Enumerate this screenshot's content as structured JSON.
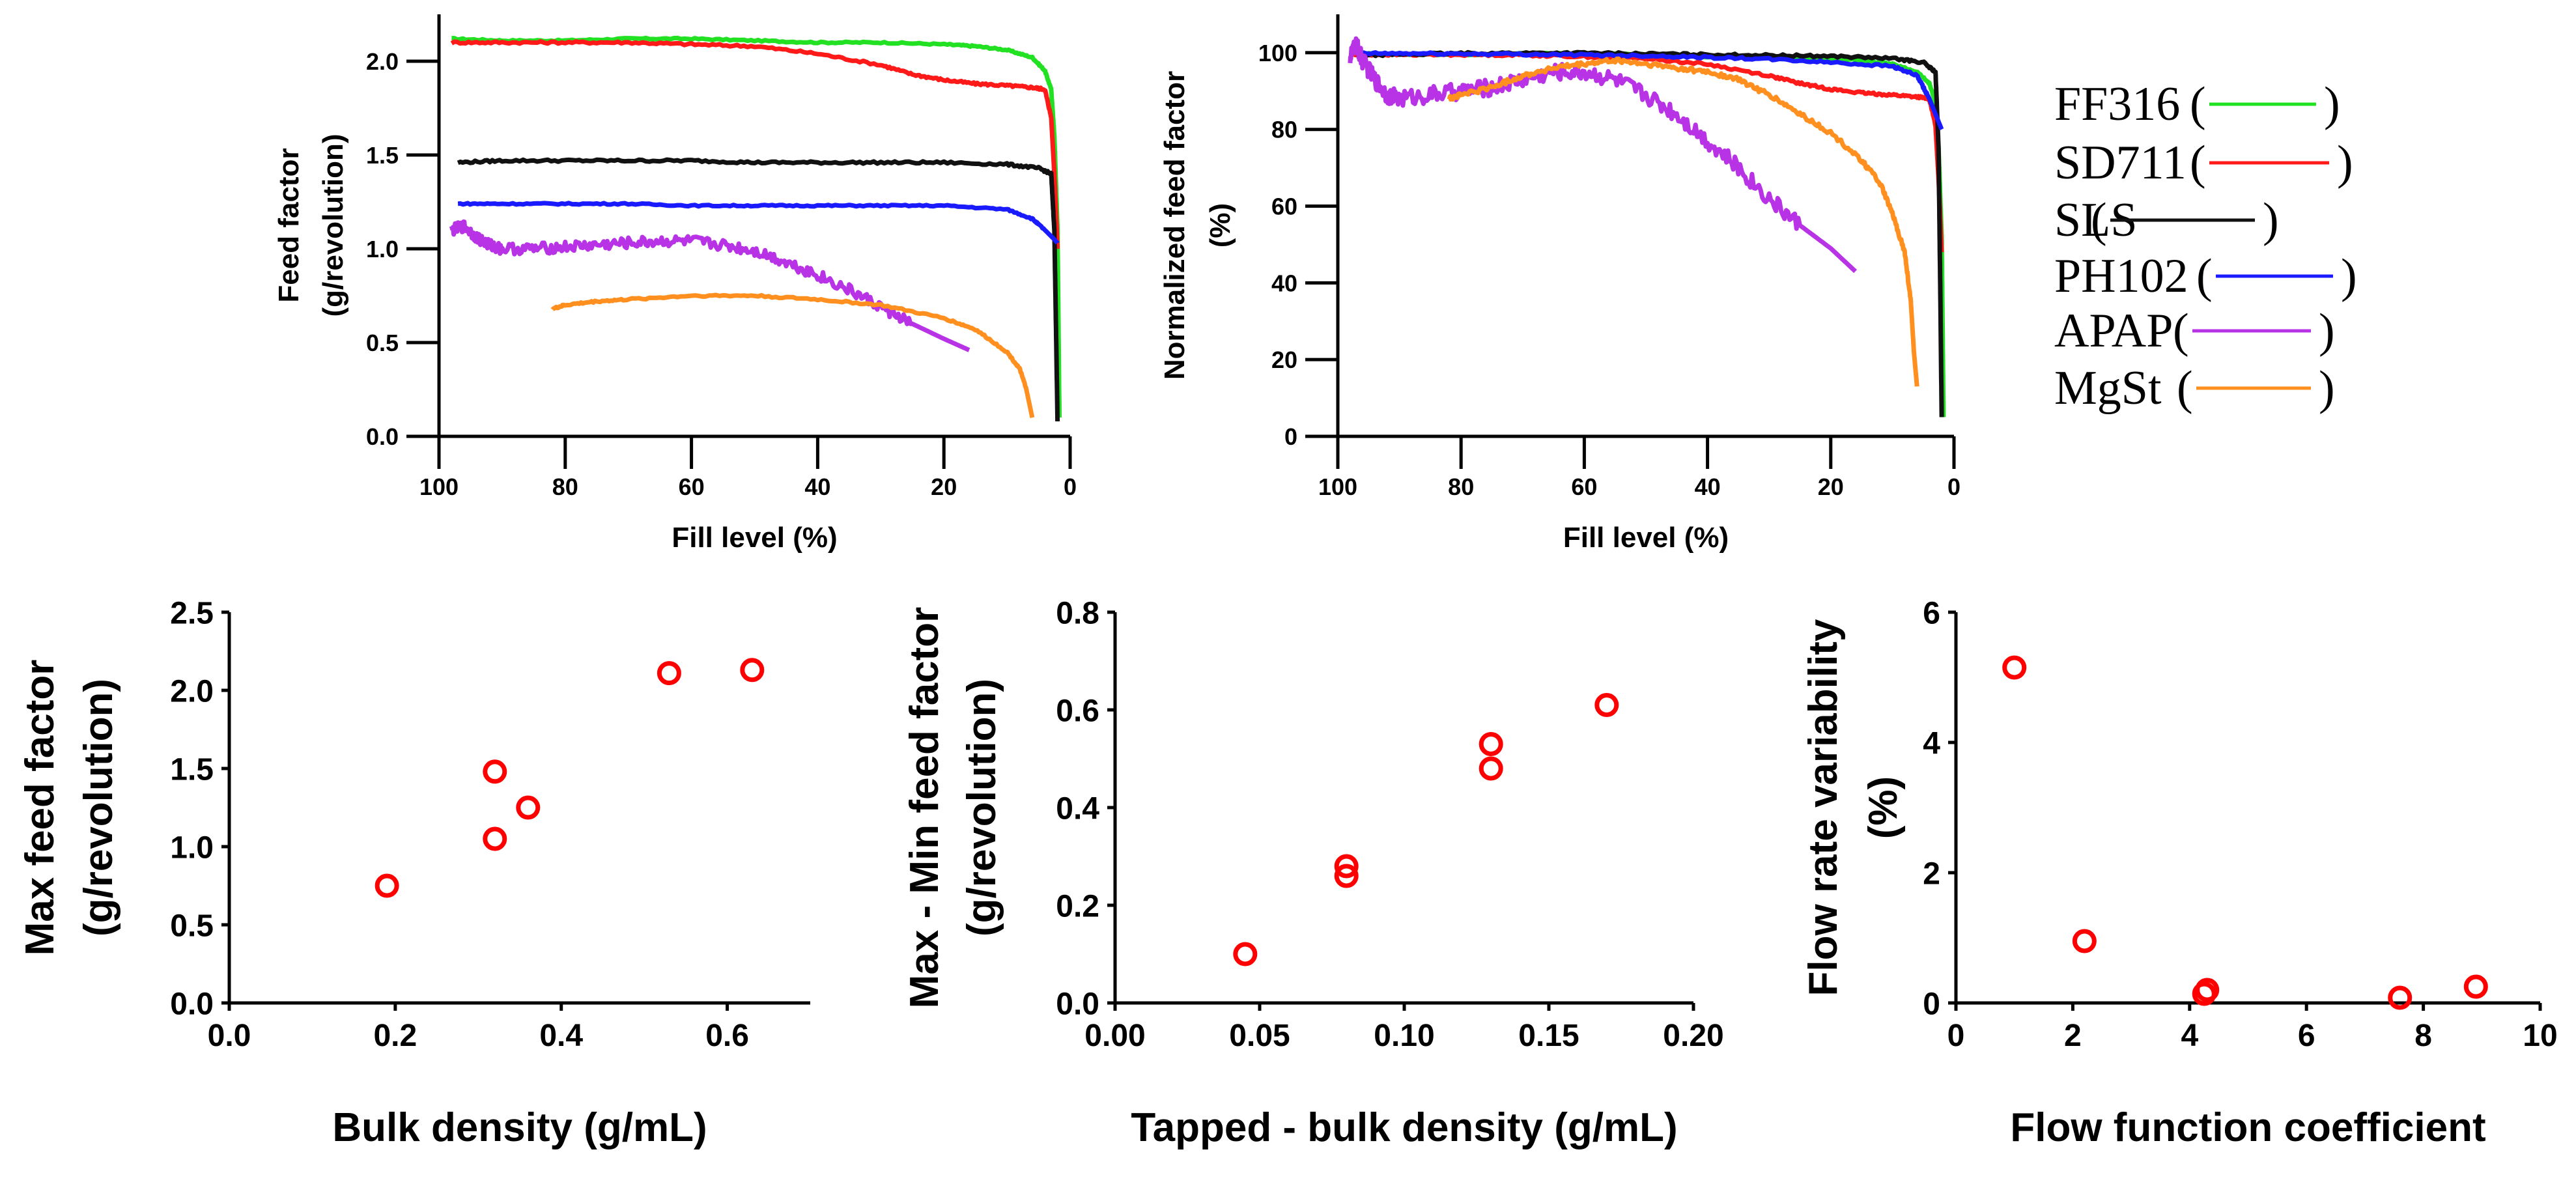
{
  "chart_data": [
    {
      "id": "feed-factor",
      "type": "line",
      "xlabel": "Fill level (%)",
      "ylabel_lines": [
        "Feed factor",
        "(g/revolution)"
      ],
      "xlim": [
        100,
        0
      ],
      "ylim": [
        0,
        2.25
      ],
      "xticks": [
        100,
        80,
        60,
        40,
        20,
        0
      ],
      "yticks": [
        0.0,
        0.5,
        1.0,
        1.5,
        2.0
      ],
      "ytick_decimals": 1,
      "series": [
        {
          "name": "FF316",
          "color": "#22e022",
          "noise": 0.004,
          "x": [
            98,
            90,
            80,
            70,
            60,
            50,
            40,
            30,
            20,
            15,
            10,
            6,
            4,
            3,
            2.5,
            2,
            1.7
          ],
          "y": [
            2.12,
            2.11,
            2.11,
            2.12,
            2.12,
            2.11,
            2.1,
            2.1,
            2.09,
            2.08,
            2.06,
            2.02,
            1.95,
            1.85,
            1.6,
            1.1,
            0.1
          ]
        },
        {
          "name": "SD711",
          "color": "#ff1a1a",
          "noise": 0.006,
          "x": [
            98,
            90,
            80,
            70,
            60,
            50,
            40,
            30,
            25,
            20,
            15,
            10,
            6,
            4,
            3,
            2.5,
            2
          ],
          "y": [
            2.1,
            2.1,
            2.1,
            2.1,
            2.09,
            2.08,
            2.04,
            1.98,
            1.93,
            1.9,
            1.88,
            1.87,
            1.86,
            1.85,
            1.7,
            1.4,
            1.0
          ]
        },
        {
          "name": "SLS",
          "color": "#111111",
          "noise": 0.006,
          "x": [
            97,
            90,
            80,
            70,
            60,
            50,
            40,
            30,
            20,
            10,
            5,
            3,
            2.5,
            2.2,
            2
          ],
          "y": [
            1.46,
            1.47,
            1.47,
            1.47,
            1.47,
            1.46,
            1.46,
            1.46,
            1.46,
            1.45,
            1.43,
            1.4,
            1.1,
            0.5,
            0.08
          ]
        },
        {
          "name": "PH102",
          "color": "#1a1aff",
          "noise": 0.004,
          "x": [
            97,
            90,
            80,
            70,
            60,
            50,
            40,
            30,
            20,
            10,
            6,
            4,
            2.5,
            2
          ],
          "y": [
            1.24,
            1.24,
            1.24,
            1.24,
            1.23,
            1.23,
            1.23,
            1.23,
            1.23,
            1.21,
            1.16,
            1.1,
            1.05,
            1.03
          ]
        },
        {
          "name": "APAP",
          "color": "#b833e6",
          "noise": 0.03,
          "x": [
            98,
            96,
            94,
            92,
            90,
            85,
            80,
            75,
            70,
            65,
            60,
            55,
            50,
            45,
            40,
            35,
            30,
            25,
            20,
            16
          ],
          "y": [
            1.1,
            1.12,
            1.06,
            1.02,
            1.0,
            1.0,
            1.01,
            1.02,
            1.03,
            1.04,
            1.04,
            1.02,
            0.99,
            0.93,
            0.86,
            0.78,
            0.69,
            0.6,
            0.52,
            0.46
          ]
        },
        {
          "name": "MgSt",
          "color": "#ff9020",
          "noise": 0.005,
          "x": [
            82,
            80,
            75,
            70,
            60,
            50,
            40,
            30,
            20,
            15,
            10,
            8,
            7,
            6.5,
            6
          ],
          "y": [
            0.68,
            0.7,
            0.72,
            0.73,
            0.75,
            0.75,
            0.73,
            0.7,
            0.63,
            0.57,
            0.45,
            0.36,
            0.26,
            0.18,
            0.1
          ]
        }
      ]
    },
    {
      "id": "normalized-feed-factor",
      "type": "line",
      "xlabel": "Fill level (%)",
      "ylabel_lines": [
        "Normalized feed factor",
        "(%)"
      ],
      "xlim": [
        100,
        0
      ],
      "ylim": [
        0,
        110
      ],
      "xticks": [
        100,
        80,
        60,
        40,
        20,
        0
      ],
      "yticks": [
        0,
        20,
        40,
        60,
        80,
        100
      ],
      "ytick_decimals": 0,
      "series": [
        {
          "name": "FF316",
          "color": "#22e022",
          "noise": 0.2,
          "x": [
            98,
            90,
            80,
            70,
            60,
            50,
            40,
            30,
            20,
            15,
            10,
            6,
            4,
            3,
            2.5,
            2,
            1.7
          ],
          "y": [
            100,
            99.6,
            99.5,
            99.7,
            99.8,
            99.5,
            99,
            98.8,
            98.5,
            98,
            97,
            95,
            92,
            87,
            75,
            52,
            5
          ]
        },
        {
          "name": "SD711",
          "color": "#ff1a1a",
          "noise": 0.3,
          "x": [
            98,
            90,
            80,
            70,
            60,
            50,
            40,
            30,
            25,
            20,
            15,
            10,
            6,
            4,
            3,
            2.5,
            2
          ],
          "y": [
            99.5,
            99.5,
            99.5,
            99.4,
            99,
            98.5,
            97,
            94,
            92,
            90.5,
            89.5,
            89,
            88.5,
            88,
            81,
            67,
            48
          ]
        },
        {
          "name": "SLS",
          "color": "#111111",
          "noise": 0.3,
          "x": [
            97,
            90,
            80,
            70,
            60,
            50,
            40,
            30,
            20,
            10,
            5,
            3,
            2.5,
            2.2,
            2
          ],
          "y": [
            99.3,
            99.6,
            99.8,
            99.9,
            99.9,
            99.7,
            99.5,
            99.3,
            99.1,
            98.5,
            97.5,
            95,
            75,
            35,
            5
          ]
        },
        {
          "name": "PH102",
          "color": "#1a1aff",
          "noise": 0.3,
          "x": [
            97,
            90,
            80,
            70,
            60,
            50,
            40,
            30,
            20,
            10,
            6,
            4,
            2.5,
            2
          ],
          "y": [
            99.8,
            99.8,
            99.7,
            99.6,
            99.4,
            99.2,
            98.8,
            98.3,
            97.5,
            96.5,
            94,
            88,
            82,
            80
          ]
        },
        {
          "name": "APAP",
          "color": "#b833e6",
          "noise": 2.2,
          "x": [
            98,
            97,
            96,
            94,
            92,
            90,
            85,
            80,
            75,
            70,
            65,
            60,
            55,
            50,
            45,
            40,
            35,
            30,
            25,
            20,
            16
          ],
          "y": [
            99,
            102,
            98,
            93,
            89,
            88,
            89,
            90,
            91,
            93,
            95,
            95,
            93,
            89,
            84,
            77,
            70,
            62,
            55,
            49,
            43
          ]
        },
        {
          "name": "MgSt",
          "color": "#ff9020",
          "noise": 0.6,
          "x": [
            82,
            80,
            75,
            70,
            65,
            60,
            55,
            50,
            45,
            40,
            35,
            30,
            25,
            20,
            15,
            12,
            10,
            8,
            7,
            6.5,
            6
          ],
          "y": [
            88,
            89,
            91,
            94,
            96,
            97,
            98,
            97,
            96,
            95,
            93,
            89,
            84,
            79,
            72,
            66,
            58,
            48,
            35,
            22,
            13
          ]
        }
      ]
    },
    {
      "id": "max-feed-factor",
      "type": "scatter",
      "xlabel": "Bulk density (g/mL)",
      "ylabel_lines": [
        "Max feed factor",
        "(g/revolution)"
      ],
      "xlim": [
        0,
        0.7
      ],
      "ylim": [
        0,
        2.5
      ],
      "xticks": [
        0.0,
        0.2,
        0.4,
        0.6
      ],
      "yticks": [
        0.0,
        0.5,
        1.0,
        1.5,
        2.0,
        2.5
      ],
      "xtick_decimals": 1,
      "ytick_decimals": 1,
      "x": [
        0.19,
        0.32,
        0.32,
        0.36,
        0.53,
        0.63
      ],
      "y": [
        0.75,
        1.05,
        1.48,
        1.25,
        2.11,
        2.13
      ],
      "color": "#ff0000"
    },
    {
      "id": "max-min-feed-factor",
      "type": "scatter",
      "xlabel": "Tapped - bulk density (g/mL)",
      "ylabel_lines": [
        "Max - Min feed factor",
        "(g/revolution)"
      ],
      "xlim": [
        0,
        0.2
      ],
      "ylim": [
        0,
        0.8
      ],
      "xticks": [
        0.0,
        0.05,
        0.1,
        0.15,
        0.2
      ],
      "yticks": [
        0.0,
        0.2,
        0.4,
        0.6,
        0.8
      ],
      "xtick_decimals": 2,
      "ytick_decimals": 1,
      "x": [
        0.045,
        0.08,
        0.08,
        0.13,
        0.13,
        0.17
      ],
      "y": [
        0.1,
        0.26,
        0.28,
        0.48,
        0.53,
        0.61
      ],
      "color": "#ff0000"
    },
    {
      "id": "flow-rate-variability",
      "type": "scatter",
      "xlabel": "Flow function coefficient",
      "ylabel_lines": [
        "Flow rate variability",
        "(%)"
      ],
      "xlim": [
        0,
        10
      ],
      "ylim": [
        0,
        6
      ],
      "xticks": [
        0,
        2,
        4,
        6,
        8,
        10
      ],
      "yticks": [
        0,
        2,
        4,
        6
      ],
      "xtick_decimals": 0,
      "ytick_decimals": 0,
      "x": [
        1.0,
        2.2,
        4.25,
        4.3,
        7.6,
        8.9
      ],
      "y": [
        5.15,
        0.95,
        0.14,
        0.2,
        0.08,
        0.25
      ],
      "color": "#ff0000"
    }
  ],
  "legend": {
    "placement": "right of normalized chart",
    "entries": [
      {
        "name": "FF316",
        "color": "#22e022"
      },
      {
        "name": "SD711",
        "color": "#ff1a1a"
      },
      {
        "name": "SLS",
        "color": "#111111"
      },
      {
        "name": "PH102",
        "color": "#1a1aff"
      },
      {
        "name": "APAP",
        "color": "#b833e6"
      },
      {
        "name": "MgSt",
        "color": "#ff9020"
      }
    ]
  }
}
